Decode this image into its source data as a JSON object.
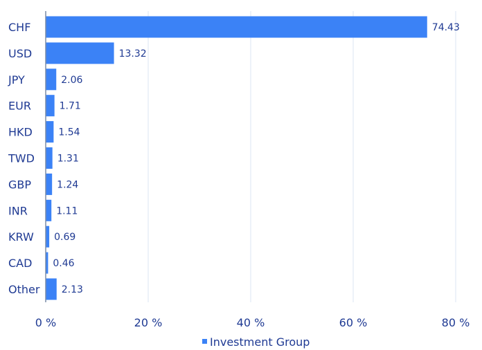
{
  "chart_data": {
    "type": "bar",
    "orientation": "horizontal",
    "categories": [
      "CHF",
      "USD",
      "JPY",
      "EUR",
      "HKD",
      "TWD",
      "GBP",
      "INR",
      "KRW",
      "CAD",
      "Other"
    ],
    "series": [
      {
        "name": "Investment Group",
        "values": [
          74.43,
          13.32,
          2.06,
          1.71,
          1.54,
          1.31,
          1.24,
          1.11,
          0.69,
          0.46,
          2.13
        ],
        "value_labels": [
          "74.43",
          "13.32",
          "2.06",
          "1.71",
          "1.54",
          "1.31",
          "1.24",
          "1.11",
          "0.69",
          "0.46",
          "2.13"
        ]
      }
    ],
    "x_ticks": [
      0,
      20,
      40,
      60,
      80
    ],
    "x_tick_labels": [
      "0 %",
      "20 %",
      "40 %",
      "60 %",
      "80 %"
    ],
    "xlim": [
      0,
      80
    ],
    "grid": true,
    "legend_position": "bottom-center",
    "colors": {
      "bar": "#3b82f6",
      "text": "#1f3a93",
      "grid": "#dbe6f3",
      "axis": "#7a8ca6"
    }
  }
}
